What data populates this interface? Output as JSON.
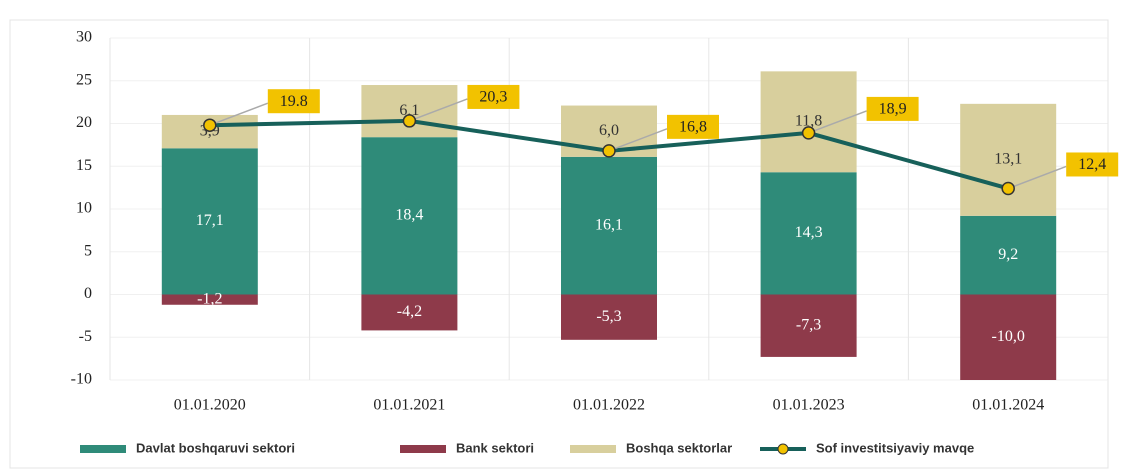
{
  "chart_data": {
    "type": "bar",
    "categories": [
      "01.01.2020",
      "01.01.2021",
      "01.01.2022",
      "01.01.2023",
      "01.01.2024"
    ],
    "ylim": [
      -10,
      30
    ],
    "yticks": [
      -10,
      -5,
      0,
      5,
      10,
      15,
      20,
      25,
      30
    ],
    "grid": true,
    "legend": "bottom",
    "series": [
      {
        "name": "Davlat boshqaruvi sektori",
        "color": "#2f8b79",
        "values": [
          17.1,
          18.4,
          16.1,
          14.3,
          9.2
        ],
        "value_labels": [
          "17,1",
          "18,4",
          "16,1",
          "14,3",
          "9,2"
        ]
      },
      {
        "name": "Bank sektori",
        "color": "#8e3a4a",
        "values": [
          -1.2,
          -4.2,
          -5.3,
          -7.3,
          -10.0
        ],
        "value_labels": [
          "-1,2",
          "-4,2",
          "-5,3",
          "-7,3",
          "-10,0"
        ]
      },
      {
        "name": "Boshqa sektorlar",
        "color": "#d8cf9d",
        "values": [
          3.9,
          6.1,
          6.0,
          11.8,
          13.1
        ],
        "value_labels": [
          "3,9",
          "6,1",
          "6,0",
          "11,8",
          "13,1"
        ]
      },
      {
        "name": "Sof investitsiyaviy mavqe",
        "type": "line",
        "color": "#17605a",
        "marker_color": "#f2c200",
        "values": [
          19.8,
          20.3,
          16.8,
          18.9,
          12.4
        ],
        "value_labels": [
          "19.8",
          "20,3",
          "16,8",
          "18,9",
          "12,4"
        ]
      }
    ]
  }
}
